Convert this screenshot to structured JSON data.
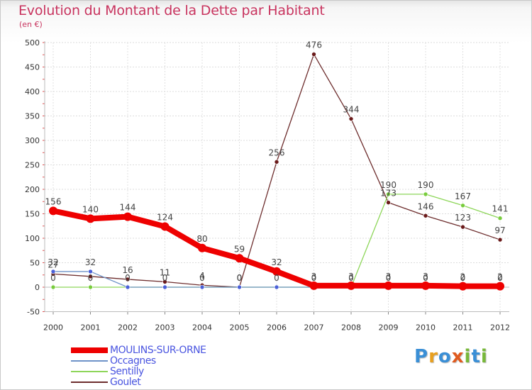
{
  "title": "Evolution du Montant de la Dette par Habitant",
  "subtitle": "(en €)",
  "logo": {
    "text": "Proxiti",
    "letters": [
      {
        "char": "P",
        "color": "#3a8fd6"
      },
      {
        "char": "r",
        "color": "#e8a020"
      },
      {
        "char": "o",
        "color": "#3a8fd6"
      },
      {
        "char": "x",
        "color": "#e05a1e"
      },
      {
        "char": "i",
        "color": "#78b83a"
      },
      {
        "char": "t",
        "color": "#3a8fd6"
      },
      {
        "char": "i",
        "color": "#78b83a"
      }
    ]
  },
  "chart_data": {
    "type": "line",
    "title": "Evolution du Montant de la Dette par Habitant",
    "ylabel": "(en €)",
    "xlabel": "",
    "ylim": [
      -50,
      500
    ],
    "yticks": [
      -50,
      0,
      50,
      100,
      150,
      200,
      250,
      300,
      350,
      400,
      450,
      500
    ],
    "categories": [
      "2000",
      "2001",
      "2002",
      "2003",
      "2004",
      "2005",
      "2006",
      "2007",
      "2008",
      "2009",
      "2010",
      "2011",
      "2012"
    ],
    "legend_position": "bottom-left",
    "series": [
      {
        "name": "MOULINS-SUR-ORNE",
        "color": "#ee0000",
        "marker_color": "#ee0000",
        "width": "thick",
        "values": [
          156,
          140,
          144,
          124,
          80,
          59,
          32,
          3,
          3,
          3,
          3,
          2,
          2
        ],
        "labels": [
          "156",
          "140",
          "144",
          "124",
          "80",
          "59",
          "32",
          "3",
          "3",
          "3",
          "3",
          "2",
          "2"
        ]
      },
      {
        "name": "Occagnes",
        "color": "#6e93c8",
        "marker_color": "#4a60d8",
        "width": "thin",
        "values": [
          32,
          32,
          0,
          0,
          0,
          0,
          0,
          0,
          0,
          0,
          0,
          0,
          0
        ],
        "labels": [
          "32",
          "32",
          "0",
          "0",
          "0",
          "0",
          "0",
          "0",
          "0",
          "0",
          "0",
          "0",
          "0"
        ]
      },
      {
        "name": "Sentilly",
        "color": "#8ed65a",
        "marker_color": "#78cc3c",
        "width": "thin",
        "values": [
          0,
          0,
          0,
          0,
          0,
          0,
          0,
          0,
          0,
          190,
          190,
          167,
          141
        ],
        "labels": [
          "0",
          "0",
          "",
          "",
          "",
          "",
          "",
          "",
          "",
          "190",
          "190",
          "167",
          "141"
        ]
      },
      {
        "name": "Goulet",
        "color": "#6e2e2e",
        "marker_color": "#6a1a1a",
        "width": "thin",
        "values": [
          27,
          22,
          16,
          11,
          4,
          0,
          256,
          476,
          344,
          173,
          146,
          123,
          97
        ],
        "labels": [
          "27",
          "",
          "16",
          "11",
          "4",
          "0",
          "256",
          "476",
          "344",
          "173",
          "146",
          "123",
          "97"
        ]
      }
    ]
  }
}
